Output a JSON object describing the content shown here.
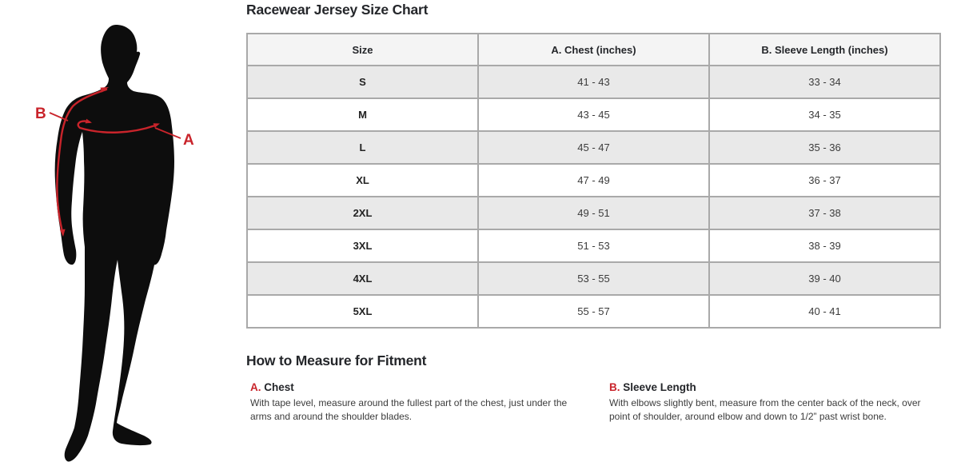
{
  "chart_data": {
    "type": "table",
    "title": "Racewear Jersey Size Chart",
    "columns": [
      "Size",
      "A. Chest (inches)",
      "B. Sleeve Length (inches)"
    ],
    "rows": [
      [
        "S",
        "41 - 43",
        "33 - 34"
      ],
      [
        "M",
        "43 - 45",
        "34 - 35"
      ],
      [
        "L",
        "45 - 47",
        "35 - 36"
      ],
      [
        "XL",
        "47 - 49",
        "36 - 37"
      ],
      [
        "2XL",
        "49 - 51",
        "37 - 38"
      ],
      [
        "3XL",
        "51 - 53",
        "38 - 39"
      ],
      [
        "4XL",
        "53 - 55",
        "39 - 40"
      ],
      [
        "5XL",
        "55 - 57",
        "40 - 41"
      ]
    ]
  },
  "diagram": {
    "label_a": "A",
    "label_b": "B"
  },
  "measure_guide": {
    "title": "How to Measure for Fitment",
    "items": [
      {
        "key": "A.",
        "name": "Chest",
        "description": "With tape level, measure around the fullest part of the chest, just under the arms and around the shoulder blades."
      },
      {
        "key": "B.",
        "name": "Sleeve Length",
        "description": "With elbows slightly bent, measure from the center back of the neck, over point of shoulder, around elbow and down to 1/2” past wrist bone."
      }
    ]
  },
  "colors": {
    "accent": "#c9242b",
    "silhouette": "#0d0d0d",
    "table_border": "#a9a9a9",
    "header_bg": "#f4f4f4",
    "stripe_bg": "#e9e9e9",
    "text_dark": "#24262a",
    "text_body": "#3c3c3c"
  }
}
